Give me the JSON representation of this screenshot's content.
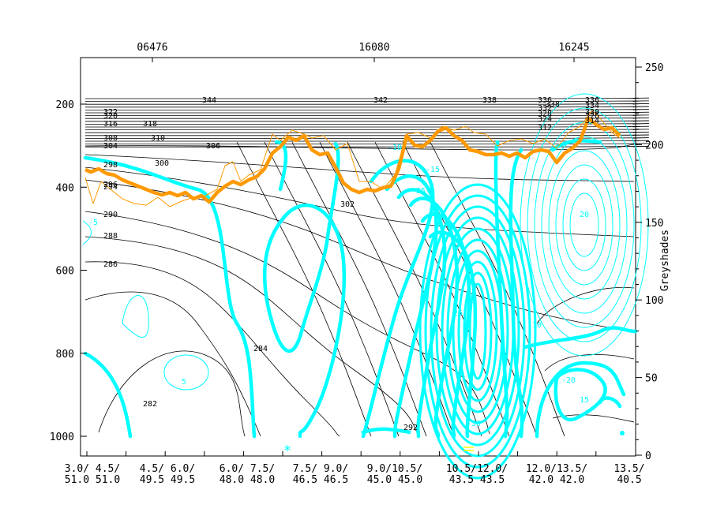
{
  "chart_data": {
    "type": "cross-section",
    "y_axis_left": {
      "ticks": [
        "200",
        "400",
        "600",
        "800",
        "1000"
      ],
      "values": [
        200,
        400,
        600,
        800,
        1000
      ],
      "range": [
        100,
        1050
      ],
      "inverted": true
    },
    "y_axis_right": {
      "label": "Greyshades",
      "ticks": [
        "0",
        "50",
        "100",
        "150",
        "200",
        "250"
      ],
      "values": [
        0,
        50,
        100,
        150,
        200,
        250
      ]
    },
    "x_axis_top": {
      "labels": [
        "06476",
        "16080",
        "16245"
      ]
    },
    "x_axis_bottom": {
      "labels": [
        [
          "3.0/ 4.5/",
          "51.0 51.0"
        ],
        [
          "4.5/ 6.0/",
          "49.5 49.5"
        ],
        [
          "6.0/ 7.5/",
          "48.0 48.0"
        ],
        [
          "7.5/ 9.0/",
          "46.5 46.5"
        ],
        [
          "9.0/10.5/",
          "45.0 45.0"
        ],
        [
          "10.5/12.0/",
          "43.5 43.5"
        ],
        [
          "12.0/13.5/",
          "42.0 42.0"
        ],
        [
          "13.5/",
          "40.5"
        ]
      ]
    },
    "theta_labels": [
      "344",
      "342",
      "338",
      "336",
      "338",
      "336",
      "334",
      "332",
      "330",
      "328",
      "326",
      "324",
      "322",
      "320",
      "318",
      "316",
      "314",
      "312",
      "310",
      "308",
      "306",
      "304",
      "302",
      "300",
      "298",
      "296",
      "294",
      "292",
      "290",
      "288",
      "286",
      "284",
      "282"
    ],
    "cyan_labels": [
      "-10",
      "-5",
      "5",
      "-15",
      "-20",
      "-25",
      "-30",
      "20",
      "25",
      "10",
      "15"
    ],
    "series": [
      {
        "kind": "thick-orange-line",
        "color": "#ff9900"
      },
      {
        "kind": "thin-orange-line",
        "color": "#ff9900"
      },
      {
        "kind": "thick-cyan-contours",
        "color": "#00ffff"
      },
      {
        "kind": "thin-cyan-contours",
        "color": "#00ffff"
      },
      {
        "kind": "black-isentropes",
        "color": "#000000"
      }
    ]
  },
  "colors": {
    "orange": "#ff9900",
    "cyan": "#00ffff",
    "black": "#000000",
    "yellow": "#ffff00"
  }
}
